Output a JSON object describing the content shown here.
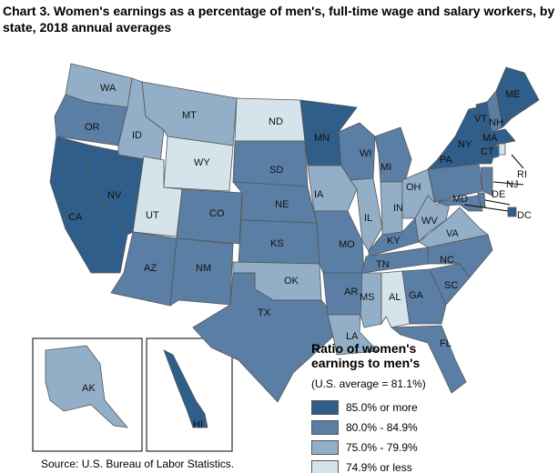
{
  "title": "Chart 3. Women's earnings as a percentage of men's, full-time wage and salary workers, by state, 2018 annual averages",
  "legend": {
    "heading_line1": "Ratio of women's",
    "heading_line2": "earnings to men's",
    "average": "(U.S. average = 81.1%)",
    "classes": [
      {
        "label": "85.0% or more",
        "color": "#2e5e89"
      },
      {
        "label": "80.0% - 84.9%",
        "color": "#5b7ea5"
      },
      {
        "label": "75.0% - 79.9%",
        "color": "#93afc7"
      },
      {
        "label": "74.9% or less",
        "color": "#d5e4ea"
      }
    ]
  },
  "source": "Source: U.S. Bureau of Labor Statistics.",
  "states": {
    "WA": 2,
    "OR": 1,
    "CA": 0,
    "NV": 0,
    "ID": 2,
    "MT": 2,
    "WY": 3,
    "UT": 3,
    "CO": 1,
    "AZ": 1,
    "NM": 1,
    "ND": 3,
    "SD": 1,
    "NE": 1,
    "KS": 1,
    "OK": 2,
    "TX": 1,
    "MN": 0,
    "IA": 2,
    "MO": 1,
    "AR": 1,
    "LA": 2,
    "WI": 1,
    "IL": 2,
    "MI": 1,
    "IN": 2,
    "OH": 2,
    "KY": 1,
    "TN": 1,
    "MS": 2,
    "AL": 3,
    "GA": 1,
    "FL": 1,
    "SC": 1,
    "NC": 1,
    "VA": 2,
    "WV": 2,
    "PA": 1,
    "NY": 0,
    "NJ": 1,
    "DE": 1,
    "MD": 1,
    "VT": 0,
    "NH": 1,
    "ME": 0,
    "MA": 0,
    "CT": 0,
    "RI": 3,
    "DC": 0,
    "AK": 2,
    "HI": 0
  }
}
